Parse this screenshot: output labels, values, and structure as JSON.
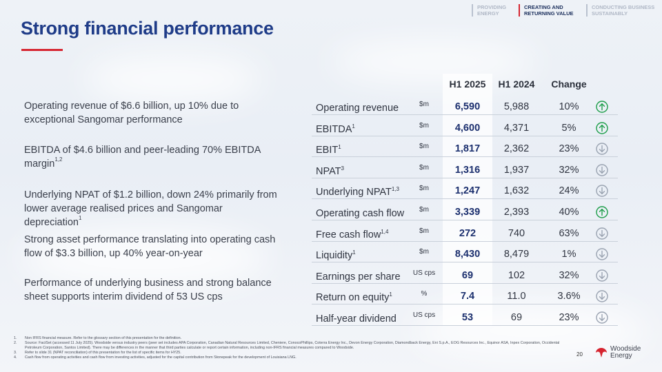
{
  "nav": {
    "items": [
      {
        "label": "PROVIDING ENERGY",
        "active": false
      },
      {
        "label": "CREATING AND RETURNING VALUE",
        "active": true
      },
      {
        "label": "CONDUCTING BUSINESS SUSTAINABLY",
        "active": false
      }
    ]
  },
  "title": "Strong financial performance",
  "bullets": [
    {
      "text": "Operating revenue of $6.6 billion, up 10% due to exceptional Sangomar performance",
      "sup": ""
    },
    {
      "text": "EBITDA of $4.6 billion and peer-leading 70% EBITDA margin",
      "sup": "1,2"
    },
    {
      "text": "Underlying NPAT of $1.2 billion, down 24% primarily from lower average realised prices and Sangomar depreciation",
      "sup": "1"
    },
    {
      "text": "Strong asset performance translating into operating cash flow of $3.3 billion, up 40% year-on-year",
      "sup": ""
    },
    {
      "text": "Performance of underlying business and strong balance sheet supports interim dividend of 53 US cps",
      "sup": ""
    }
  ],
  "table": {
    "headers": {
      "h1_2025": "H1 2025",
      "h1_2024": "H1 2024",
      "change": "Change"
    },
    "rows": [
      {
        "label": "Operating revenue",
        "sup": "",
        "unit": "$m",
        "h1_2025": "6,590",
        "h1_2024": "5,988",
        "change": "10%",
        "direction": "up"
      },
      {
        "label": "EBITDA",
        "sup": "1",
        "unit": "$m",
        "h1_2025": "4,600",
        "h1_2024": "4,371",
        "change": "5%",
        "direction": "up"
      },
      {
        "label": "EBIT",
        "sup": "1",
        "unit": "$m",
        "h1_2025": "1,817",
        "h1_2024": "2,362",
        "change": "23%",
        "direction": "down"
      },
      {
        "label": "NPAT",
        "sup": "3",
        "unit": "$m",
        "h1_2025": "1,316",
        "h1_2024": "1,937",
        "change": "32%",
        "direction": "down"
      },
      {
        "label": "Underlying NPAT",
        "sup": "1,3",
        "unit": "$m",
        "h1_2025": "1,247",
        "h1_2024": "1,632",
        "change": "24%",
        "direction": "down"
      },
      {
        "label": "Operating cash flow",
        "sup": "",
        "unit": "$m",
        "h1_2025": "3,339",
        "h1_2024": "2,393",
        "change": "40%",
        "direction": "up"
      },
      {
        "label": "Free cash flow",
        "sup": "1,4",
        "unit": "$m",
        "h1_2025": "272",
        "h1_2024": "740",
        "change": "63%",
        "direction": "down"
      },
      {
        "label": "Liquidity",
        "sup": "1",
        "unit": "$m",
        "h1_2025": "8,430",
        "h1_2024": "8,479",
        "change": "1%",
        "direction": "down"
      },
      {
        "label": "Earnings per share",
        "sup": "",
        "unit": "US cps",
        "h1_2025": "69",
        "h1_2024": "102",
        "change": "32%",
        "direction": "down"
      },
      {
        "label": "Return on equity",
        "sup": "1",
        "unit": "%",
        "h1_2025": "7.4",
        "h1_2024": "11.0",
        "change": "3.6%",
        "direction": "down"
      },
      {
        "label": "Half-year dividend",
        "sup": "",
        "unit": "US cps",
        "h1_2025": "53",
        "h1_2024": "69",
        "change": "23%",
        "direction": "down"
      }
    ]
  },
  "footnotes": [
    {
      "num": "1.",
      "text": "Non IFRS financial measure. Refer to the glossary section of this presentation for the definition."
    },
    {
      "num": "2.",
      "text": "Source: FactSet (accessed 11 July 2025). Woodside versus industry peers (peer set includes APA Corporation, Canadian Natural Resources Limited, Cheniere, ConocoPhillips, Coterra Energy Inc., Devon Energy Corporation, Diamondback Energy, Eni S.p.A., EOG Resources Inc., Equinor ASA, Inpex Corporation, Occidental Petroleum Corporation, Santos Limited). There may be differences in the manner that third parties calculate or report certain information, including non-IFRS financial measures compared to Woodside."
    },
    {
      "num": "3.",
      "text": "Refer to slide 31 (NPAT reconciliation) of this presentation for the list of specific items for HY25."
    },
    {
      "num": "4.",
      "text": "Cash flow from operating activities and cash flow from investing activities, adjusted for the capital contribution from Stonepeak for the development of Louisiana LNG."
    }
  ],
  "page_number": "20",
  "logo": {
    "line1": "Woodside",
    "line2": "Energy"
  },
  "colors": {
    "up": "#1e9e4a",
    "down": "#9aa3b1",
    "accent": "#d6242f",
    "title": "#1f3c88"
  }
}
